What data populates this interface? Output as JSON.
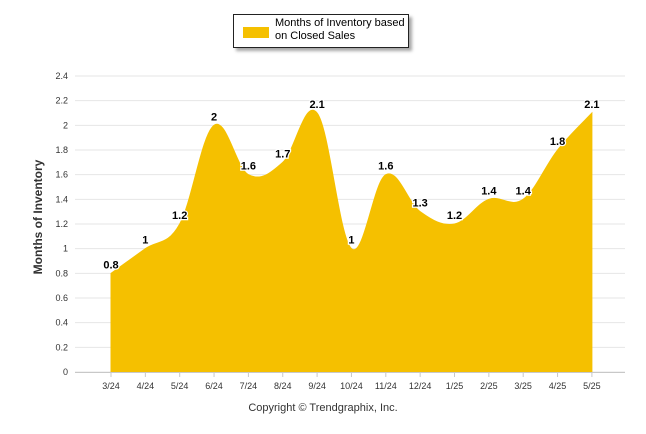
{
  "chart_data": {
    "type": "area",
    "categories": [
      "3/24",
      "4/24",
      "5/24",
      "6/24",
      "7/24",
      "8/24",
      "9/24",
      "10/24",
      "11/24",
      "12/24",
      "1/25",
      "2/25",
      "3/25",
      "4/25",
      "5/25"
    ],
    "series": [
      {
        "name": "Months of Inventory based on Closed Sales",
        "values": [
          0.8,
          1,
          1.2,
          2,
          1.6,
          1.7,
          2.1,
          1,
          1.6,
          1.3,
          1.2,
          1.4,
          1.4,
          1.8,
          2.1
        ],
        "data_labels": [
          "0.8",
          "1",
          "1.2",
          "2",
          "1.6",
          "1.7",
          "2.1",
          "1",
          "1.6",
          "1.3",
          "1.2",
          "1.4",
          "1.4",
          "1.8",
          "2.1"
        ],
        "color": "#F5C000"
      }
    ],
    "ylabel": "Months of Inventory",
    "xlabel": "",
    "ylim": [
      0,
      2.4
    ],
    "yticks": [
      0,
      0.2,
      0.4,
      0.6,
      0.8,
      1,
      1.2,
      1.4,
      1.6,
      1.8,
      2,
      2.2,
      2.4
    ],
    "ytick_labels": [
      "0",
      "0.2",
      "0.4",
      "0.6",
      "0.8",
      "1",
      "1.2",
      "1.4",
      "1.6",
      "1.8",
      "2",
      "2.2",
      "2.4"
    ],
    "grid": true,
    "legend_position": "top-center"
  },
  "legend": {
    "label": "Months of Inventory based on Closed Sales"
  },
  "footer": {
    "copyright": "Copyright © Trendgraphix, Inc."
  },
  "colors": {
    "area": "#F5C000",
    "grid": "#e6e6e6",
    "axis_text": "#333333"
  }
}
